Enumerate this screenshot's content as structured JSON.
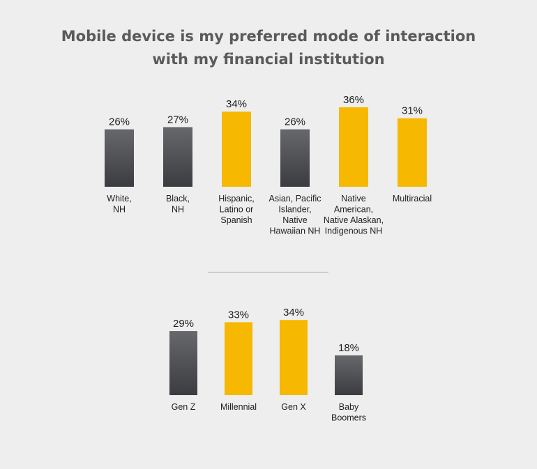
{
  "title": {
    "line1": "Mobile device is my preferred mode of interaction",
    "line2": "with my financial institution"
  },
  "colors": {
    "dark_top": "#67686b",
    "dark_bottom": "#3b3c40",
    "highlight": "#f6b800"
  },
  "chart_data": [
    {
      "type": "bar",
      "categories": [
        [
          "White,",
          "NH"
        ],
        [
          "Black,",
          "NH"
        ],
        [
          "Hispanic,",
          "Latino or",
          "Spanish"
        ],
        [
          "Asian, Pacific",
          "Islander,",
          "Native",
          "Hawaiian NH"
        ],
        [
          "Native",
          "American,",
          "Native Alaskan,",
          "Indigenous NH"
        ],
        [
          "Multiracial"
        ]
      ],
      "values": [
        26,
        27,
        34,
        26,
        36,
        31
      ],
      "value_labels": [
        "26%",
        "27%",
        "34%",
        "26%",
        "36%",
        "31%"
      ],
      "highlight": [
        false,
        false,
        true,
        false,
        true,
        true
      ],
      "unit": "%"
    },
    {
      "type": "bar",
      "categories": [
        [
          "Gen Z"
        ],
        [
          "Millennial"
        ],
        [
          "Gen X"
        ],
        [
          "Baby",
          "Boomers"
        ]
      ],
      "values": [
        29,
        33,
        34,
        18
      ],
      "value_labels": [
        "29%",
        "33%",
        "34%",
        "18%"
      ],
      "highlight": [
        false,
        true,
        true,
        false
      ],
      "unit": "%"
    }
  ]
}
